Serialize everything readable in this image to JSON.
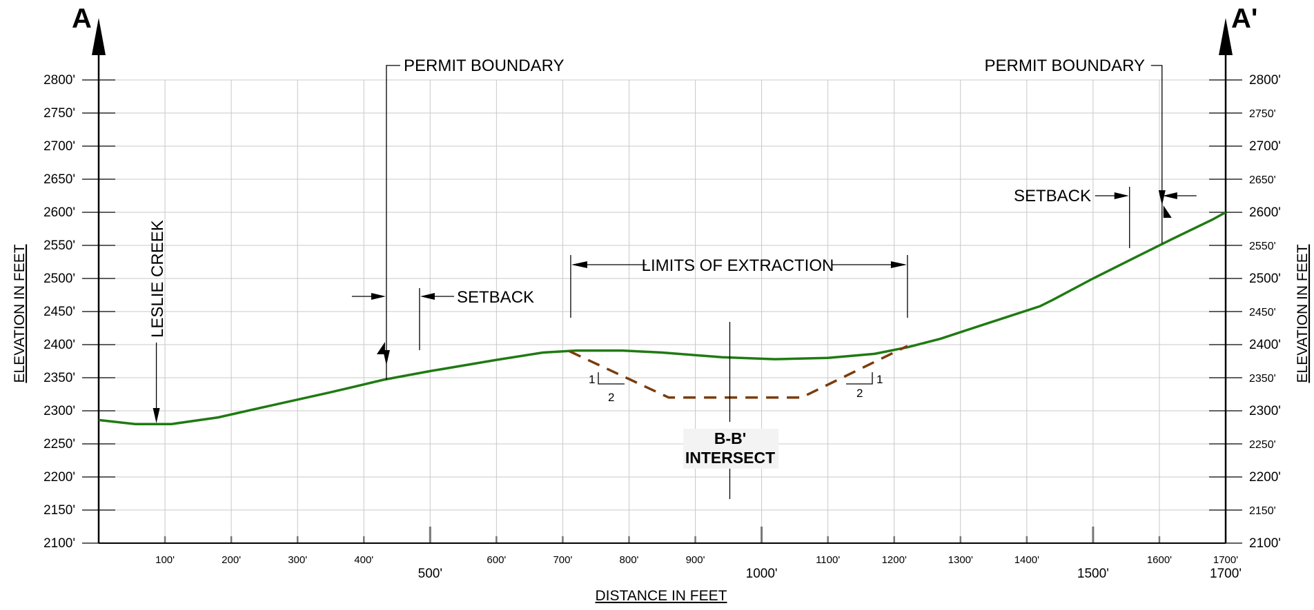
{
  "section": {
    "start_label": "A",
    "end_label": "A'"
  },
  "axes": {
    "x_title": "DISTANCE IN FEET",
    "y_title_left": "ELEVATION IN FEET",
    "y_title_right": "ELEVATION IN FEET",
    "x_range": [
      0,
      1700
    ],
    "y_range": [
      2100,
      2800
    ],
    "y_tick_labels": [
      "2800'",
      "2750'",
      "2700'",
      "2650'",
      "2600'",
      "2550'",
      "2500'",
      "2450'",
      "2400'",
      "2350'",
      "2300'",
      "2250'",
      "2200'",
      "2150'",
      "2100'"
    ],
    "x_tick_labels": [
      "100'",
      "200'",
      "300'",
      "400'",
      "600'",
      "700'",
      "800'",
      "900'",
      "1100'",
      "1200'",
      "1300'",
      "1400'",
      "1600'",
      "1700'"
    ],
    "x_major_labels": [
      "500'",
      "1000'",
      "1500'",
      "1700'"
    ]
  },
  "annotations": {
    "leslie_creek": "LESLIE CREEK",
    "permit_boundary_left": "PERMIT BOUNDARY",
    "permit_boundary_right": "PERMIT BOUNDARY",
    "setback_left": "SETBACK",
    "setback_right": "SETBACK",
    "limits_of_extraction": "LIMITS OF EXTRACTION",
    "intersect_line1": "B-B'",
    "intersect_line2": "INTERSECT",
    "slope_left_rise": "1",
    "slope_left_run": "2",
    "slope_right_rise": "1",
    "slope_right_run": "2"
  },
  "colors": {
    "ground": "#1f7a12",
    "extraction": "#7a3c0c",
    "grid": "#c8c8c8"
  },
  "chart_data": {
    "type": "line",
    "series": [
      {
        "name": "",
        "x": [
          0,
          55,
          110,
          180,
          260,
          350,
          430,
          500,
          600,
          670,
          720,
          790,
          850,
          940,
          1020,
          1100,
          1170,
          1220,
          1270,
          1340,
          1420,
          1440,
          1500,
          1560,
          1620,
          1680,
          1700
        ],
        "y": [
          2286,
          2280,
          2280,
          2290,
          2308,
          2328,
          2347,
          2360,
          2377,
          2388,
          2391,
          2391,
          2388,
          2381,
          2378,
          2380,
          2386,
          2396,
          2409,
          2432,
          2458,
          2468,
          2500,
          2530,
          2560,
          2589,
          2600
        ]
      },
      {
        "name": "",
        "x": [
          710,
          860,
          1060,
          1220
        ],
        "y": [
          2390,
          2320,
          2320,
          2398
        ]
      }
    ],
    "markers": {
      "leslie_creek_x": 87,
      "permit_boundary_left_x": 434,
      "setback_left_x": 484,
      "limits_of_extraction": [
        712,
        1220
      ],
      "intersect_x": 952,
      "setback_right_x": 1555,
      "permit_boundary_right_x": 1604
    }
  }
}
